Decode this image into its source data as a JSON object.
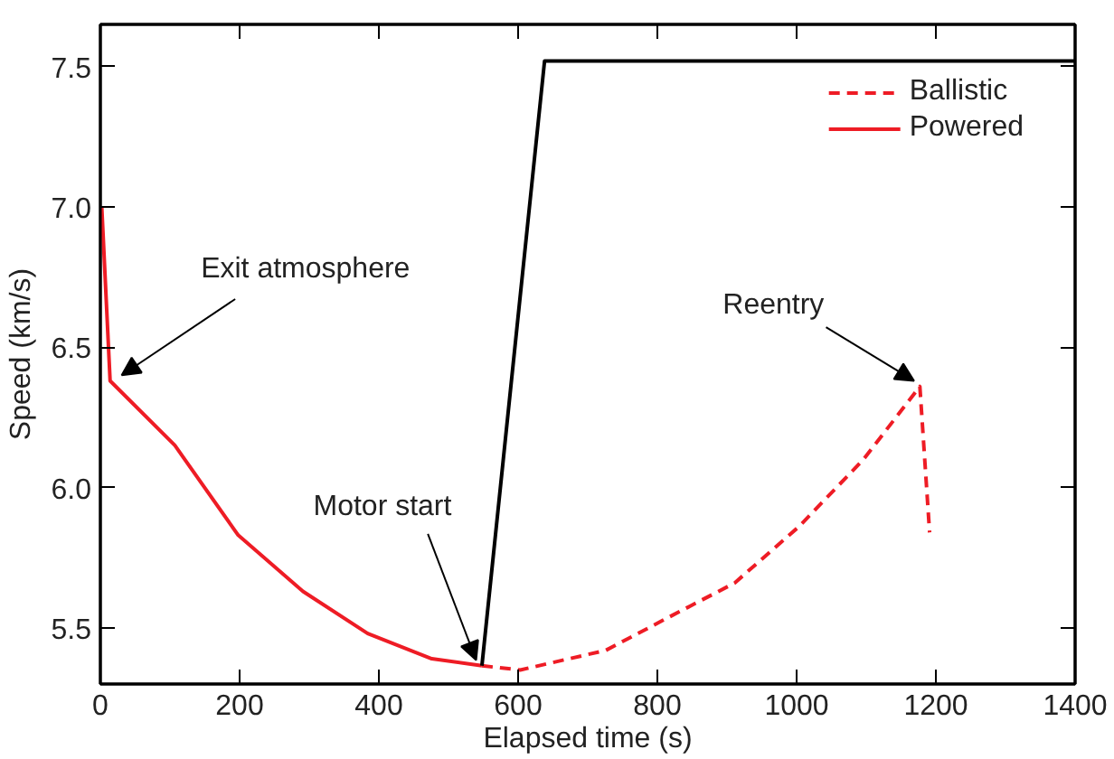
{
  "chart_data": {
    "type": "line",
    "xlabel": "Elapsed time (s)",
    "ylabel": "Speed (km/s)",
    "xlim": [
      0,
      1400
    ],
    "xticks": [
      0,
      200,
      400,
      600,
      800,
      1000,
      1200,
      1400
    ],
    "ylim": [
      5.3,
      7.65
    ],
    "yticks": [
      {
        "value": 5.5,
        "label": "5.5"
      },
      {
        "value": 6.0,
        "label": "6.0"
      },
      {
        "value": 6.5,
        "label": "6.5"
      },
      {
        "value": 7.0,
        "label": "7.0"
      },
      {
        "value": 7.5,
        "label": "7.5"
      }
    ],
    "grid": false,
    "legend": "top right",
    "marker": "none",
    "series": [
      {
        "name": "Ballistic",
        "color": "#ee1c25",
        "line_style": "dashed",
        "x": [
          548,
          603,
          726,
          818,
          911,
          1003,
          1096,
          1177,
          1191
        ],
        "values": [
          5.365,
          5.35,
          5.42,
          5.54,
          5.66,
          5.86,
          6.1,
          6.36,
          5.84
        ]
      },
      {
        "name": "Powered",
        "color": "#ee1c25",
        "line_style": "solid",
        "x": [
          2,
          14,
          107,
          198,
          291,
          384,
          476,
          548
        ],
        "values": [
          7.0,
          6.38,
          6.15,
          5.83,
          5.63,
          5.48,
          5.39,
          5.365
        ]
      },
      {
        "color": "#000000",
        "line_style": "solid",
        "x": [
          548,
          638,
          1400
        ],
        "values": [
          5.365,
          7.52,
          7.52
        ]
      }
    ],
    "annotations": [
      {
        "text": "Exit atmosphere",
        "x": 14,
        "y": 6.38
      },
      {
        "text": "Motor start",
        "x": 548,
        "y": 5.365
      },
      {
        "text": "Reentry",
        "x": 1177,
        "y": 6.36
      }
    ]
  }
}
